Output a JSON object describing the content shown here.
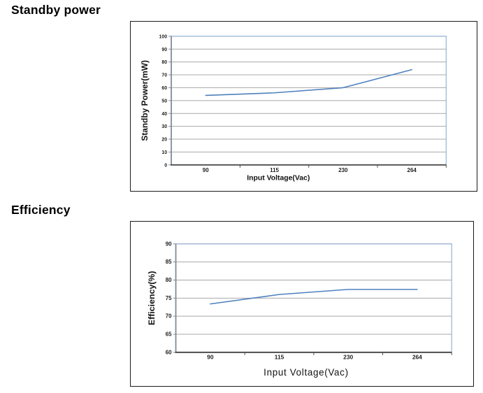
{
  "page": {
    "background": "#ffffff"
  },
  "headings": [
    {
      "text": "Standby power"
    },
    {
      "text": "Efficiency"
    }
  ],
  "chart_data": [
    {
      "type": "line",
      "title": "Standby power",
      "xlabel": "Input Voltage(Vac)",
      "ylabel": "Standby Power(mW)",
      "categories": [
        "90",
        "115",
        "230",
        "264"
      ],
      "series": [
        {
          "name": "Standby Power (mW)",
          "values": [
            54,
            56,
            60,
            74
          ]
        }
      ],
      "ylim": [
        0,
        100
      ],
      "ytick_step": 10,
      "ytick_labels": [
        "100",
        "90",
        "80",
        "70",
        "60",
        "50",
        "40",
        "30",
        "20",
        "10",
        "0"
      ],
      "grid": true,
      "legend": "none",
      "colors": {
        "line": "#4f81bd",
        "grid": "#a8a8a8",
        "plot_border": "#95b3d7",
        "axis_y": "#7f8c99",
        "axis_x": "#4d4d4d",
        "text": "#1f1f1f"
      }
    },
    {
      "type": "line",
      "title": "Efficiency",
      "xlabel": "Input Voltage(Vac)",
      "ylabel": "Efficiency(%)",
      "categories": [
        "90",
        "115",
        "230",
        "264"
      ],
      "series": [
        {
          "name": "Efficiency (%)",
          "values": [
            73.4,
            76,
            77.4,
            77.4
          ]
        }
      ],
      "ylim": [
        60,
        90
      ],
      "ytick_step": 5,
      "ytick_labels": [
        "90",
        "85",
        "80",
        "75",
        "70",
        "65",
        "60"
      ],
      "grid": true,
      "legend": "none",
      "colors": {
        "line": "#4f81bd",
        "grid": "#a8a8a8",
        "plot_border": "#95b3d7",
        "axis_y": "#7f8c99",
        "axis_x": "#4d4d4d",
        "text": "#1f1f1f"
      }
    }
  ]
}
